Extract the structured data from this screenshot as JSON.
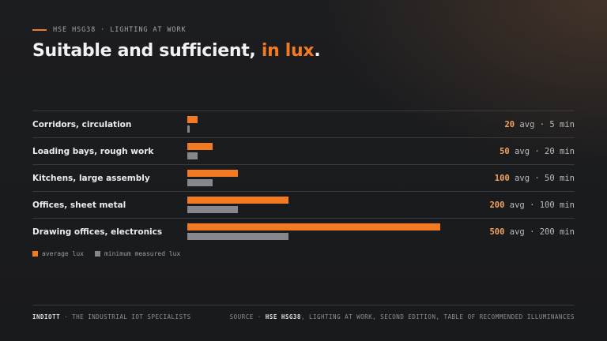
{
  "header": {
    "eyebrow": "HSE HSG38 · LIGHTING AT WORK",
    "title_main": "Suitable and sufficient,",
    "title_accent": "in lux",
    "title_end": "."
  },
  "chart_data": {
    "type": "bar",
    "orientation": "horizontal",
    "categories": [
      "Corridors, circulation",
      "Loading bays, rough work",
      "Kitchens, large assembly",
      "Offices, sheet metal",
      "Drawing offices, electronics"
    ],
    "series": [
      {
        "name": "average lux",
        "values": [
          20,
          50,
          100,
          200,
          500
        ],
        "color": "#f47a22"
      },
      {
        "name": "minimum measured lux",
        "values": [
          5,
          20,
          50,
          100,
          200
        ],
        "color": "#85878c"
      }
    ],
    "value_labels": {
      "avg_word": "avg",
      "separator": "·",
      "min_word": "min"
    },
    "xlim": [
      0,
      500
    ],
    "legend_position": "bottom-left",
    "grid": false
  },
  "footer": {
    "brand": "INDIOTT",
    "tagline": "· THE INDUSTRIAL IOT SPECIALISTS",
    "source_label": "SOURCE ·",
    "source_strong": "HSE HSG38",
    "source_rest": ", LIGHTING AT WORK, SECOND EDITION, TABLE OF RECOMMENDED ILLUMINANCES"
  }
}
